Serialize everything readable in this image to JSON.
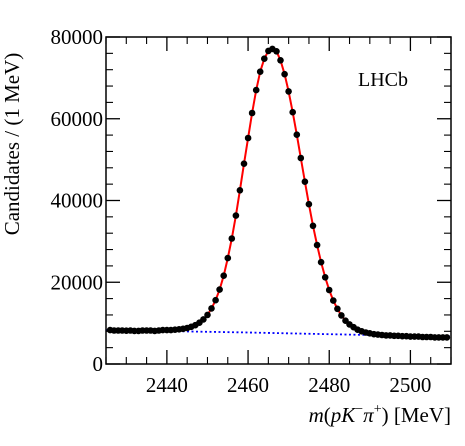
{
  "chart_data": {
    "type": "scatter",
    "annotation": "LHCb",
    "xlabel": {
      "m": "m",
      "open": "(",
      "p": "p",
      "K": "K",
      "minus": "−",
      "pi": "π",
      "plus": "+",
      "close": ")",
      "unit": " [MeV]"
    },
    "ylabel": "Candidates / (1 MeV)",
    "xlim": [
      2425,
      2510
    ],
    "ylim": [
      0,
      80000
    ],
    "x_ticks": [
      2440,
      2460,
      2480,
      2500
    ],
    "x_tick_labels": [
      "2440",
      "2460",
      "2480",
      "2500"
    ],
    "y_ticks": [
      0,
      20000,
      40000,
      60000,
      80000
    ],
    "y_tick_labels": [
      "0",
      "20000",
      "40000",
      "60000",
      "80000"
    ],
    "grid": false,
    "series": [
      {
        "kind": "points",
        "color": "#000000",
        "x": [
          2426,
          2427,
          2428,
          2429,
          2430,
          2431,
          2432,
          2433,
          2434,
          2435,
          2436,
          2437,
          2438,
          2439,
          2440,
          2441,
          2442,
          2443,
          2444,
          2445,
          2446,
          2447,
          2448,
          2449,
          2450,
          2451,
          2452,
          2453,
          2454,
          2455,
          2456,
          2457,
          2458,
          2459,
          2460,
          2461,
          2462,
          2463,
          2464,
          2465,
          2466,
          2467,
          2468,
          2469,
          2470,
          2471,
          2472,
          2473,
          2474,
          2475,
          2476,
          2477,
          2478,
          2479,
          2480,
          2481,
          2482,
          2483,
          2484,
          2485,
          2486,
          2487,
          2488,
          2489,
          2490,
          2491,
          2492,
          2493,
          2494,
          2495,
          2496,
          2497,
          2498,
          2499,
          2500,
          2501,
          2502,
          2503,
          2504,
          2505,
          2506,
          2507,
          2508,
          2509
        ],
        "y": [
          8300,
          8200,
          8200,
          8200,
          8150,
          8200,
          8100,
          8100,
          8200,
          8200,
          8200,
          8100,
          8200,
          8300,
          8300,
          8300,
          8400,
          8500,
          8600,
          8800,
          9100,
          9500,
          10100,
          10900,
          12000,
          13600,
          15600,
          18200,
          21600,
          25900,
          30700,
          36300,
          42500,
          49000,
          55300,
          61400,
          67000,
          71500,
          74700,
          76600,
          77100,
          76500,
          74300,
          70900,
          66700,
          61600,
          56100,
          50400,
          44600,
          39100,
          33800,
          29100,
          24900,
          21200,
          18100,
          15500,
          13500,
          11900,
          10600,
          9700,
          9000,
          8400,
          8000,
          7700,
          7500,
          7300,
          7200,
          7100,
          7000,
          7000,
          6900,
          6900,
          6800,
          6800,
          6700,
          6700,
          6700,
          6600,
          6600,
          6600,
          6500,
          6500,
          6500,
          6500
        ]
      },
      {
        "kind": "fit",
        "color": "#ff0000",
        "x": [
          2426,
          2427,
          2428,
          2429,
          2430,
          2431,
          2432,
          2433,
          2434,
          2435,
          2436,
          2437,
          2438,
          2439,
          2440,
          2441,
          2442,
          2443,
          2444,
          2445,
          2446,
          2447,
          2448,
          2449,
          2450,
          2451,
          2452,
          2453,
          2454,
          2455,
          2456,
          2457,
          2458,
          2459,
          2460,
          2461,
          2462,
          2463,
          2464,
          2465,
          2466,
          2467,
          2468,
          2469,
          2470,
          2471,
          2472,
          2473,
          2474,
          2475,
          2476,
          2477,
          2478,
          2479,
          2480,
          2481,
          2482,
          2483,
          2484,
          2485,
          2486,
          2487,
          2488,
          2489,
          2490,
          2491,
          2492,
          2493,
          2494,
          2495,
          2496,
          2497,
          2498,
          2499,
          2500,
          2501,
          2502,
          2503,
          2504,
          2505,
          2506,
          2507,
          2508,
          2509
        ],
        "y": [
          8300,
          8200,
          8200,
          8200,
          8150,
          8200,
          8100,
          8100,
          8200,
          8200,
          8200,
          8100,
          8200,
          8300,
          8300,
          8300,
          8400,
          8500,
          8600,
          8800,
          9100,
          9500,
          10100,
          10900,
          12000,
          13600,
          15600,
          18200,
          21600,
          25900,
          30700,
          36300,
          42500,
          49000,
          55300,
          61400,
          67000,
          71500,
          74700,
          76600,
          77100,
          76500,
          74300,
          70900,
          66700,
          61600,
          56100,
          50400,
          44600,
          39100,
          33800,
          29100,
          24900,
          21200,
          18100,
          15500,
          13500,
          11900,
          10600,
          9700,
          9000,
          8400,
          8000,
          7700,
          7500,
          7300,
          7200,
          7100,
          7000,
          7000,
          6900,
          6900,
          6800,
          6800,
          6700,
          6700,
          6700,
          6600,
          6600,
          6600,
          6500,
          6500,
          6500,
          6500
        ]
      },
      {
        "kind": "background",
        "color": "#0000ff",
        "style": "dotted",
        "x": [
          2425,
          2440,
          2460,
          2480,
          2500,
          2510
        ],
        "y": [
          8300,
          8050,
          7700,
          7300,
          6900,
          6700
        ]
      }
    ]
  }
}
